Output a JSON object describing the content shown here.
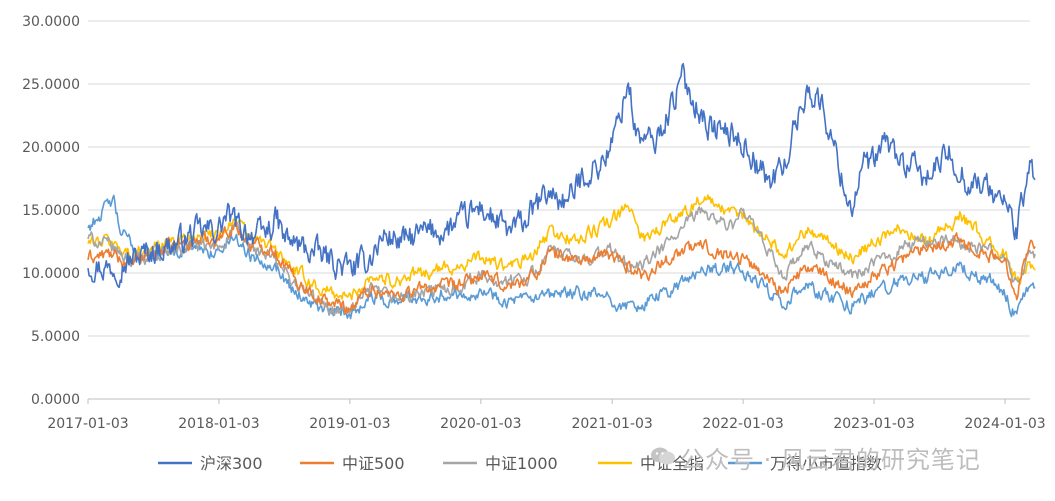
{
  "chart_data": {
    "type": "line",
    "title": "",
    "xlabel": "",
    "ylabel": "",
    "ylim": [
      0,
      30
    ],
    "y_ticks": [
      "0.0000",
      "5.0000",
      "10.0000",
      "15.0000",
      "20.0000",
      "25.0000",
      "30.0000"
    ],
    "x_ticks": [
      "2017-01-03",
      "2018-01-03",
      "2019-01-03",
      "2020-01-03",
      "2021-01-03",
      "2022-01-03",
      "2023-01-03",
      "2024-01-03"
    ],
    "x_range": [
      "2017-01-03",
      "2024-03-29"
    ],
    "grid": "horizontal",
    "legend_position": "bottom",
    "series": [
      {
        "name": "沪深300",
        "color": "#4472C4",
        "points": [
          [
            "2017-01-03",
            10.8
          ],
          [
            "2017-03-01",
            10.4
          ],
          [
            "2017-05-01",
            11.0
          ],
          [
            "2017-07-01",
            11.8
          ],
          [
            "2017-09-01",
            12.3
          ],
          [
            "2017-11-01",
            13.2
          ],
          [
            "2018-01-03",
            13.5
          ],
          [
            "2018-01-25",
            14.6
          ],
          [
            "2018-03-01",
            13.6
          ],
          [
            "2018-05-01",
            12.9
          ],
          [
            "2018-06-15",
            14.2
          ],
          [
            "2018-07-01",
            12.8
          ],
          [
            "2018-09-01",
            11.9
          ],
          [
            "2018-11-01",
            11.2
          ],
          [
            "2018-12-15",
            10.5
          ],
          [
            "2019-01-03",
            10.3
          ],
          [
            "2019-02-15",
            10.8
          ],
          [
            "2019-04-10",
            13.0
          ],
          [
            "2019-06-01",
            12.5
          ],
          [
            "2019-08-01",
            13.2
          ],
          [
            "2019-10-01",
            13.4
          ],
          [
            "2019-12-01",
            14.5
          ],
          [
            "2020-01-03",
            15.2
          ],
          [
            "2020-03-20",
            13.2
          ],
          [
            "2020-05-01",
            14.0
          ],
          [
            "2020-07-10",
            16.4
          ],
          [
            "2020-09-01",
            15.6
          ],
          [
            "2020-10-15",
            17.8
          ],
          [
            "2020-12-01",
            18.6
          ],
          [
            "2021-01-03",
            20.2
          ],
          [
            "2021-02-18",
            25.3
          ],
          [
            "2021-03-10",
            21.0
          ],
          [
            "2021-05-01",
            20.2
          ],
          [
            "2021-07-20",
            25.5
          ],
          [
            "2021-08-10",
            24.2
          ],
          [
            "2021-10-01",
            21.6
          ],
          [
            "2021-12-01",
            21.0
          ],
          [
            "2022-01-03",
            20.4
          ],
          [
            "2022-03-15",
            17.2
          ],
          [
            "2022-04-27",
            18.5
          ],
          [
            "2022-06-01",
            22.0
          ],
          [
            "2022-07-05",
            24.8
          ],
          [
            "2022-08-15",
            23.0
          ],
          [
            "2022-10-31",
            15.0
          ],
          [
            "2022-12-01",
            18.5
          ],
          [
            "2023-01-03",
            18.6
          ],
          [
            "2023-02-01",
            20.4
          ],
          [
            "2023-04-01",
            18.5
          ],
          [
            "2023-06-01",
            17.6
          ],
          [
            "2023-08-01",
            19.5
          ],
          [
            "2023-09-15",
            17.4
          ],
          [
            "2023-11-01",
            17.0
          ],
          [
            "2024-01-03",
            15.6
          ],
          [
            "2024-02-05",
            13.4
          ],
          [
            "2024-02-29",
            16.5
          ],
          [
            "2024-03-15",
            18.8
          ],
          [
            "2024-03-29",
            17.2
          ]
        ]
      },
      {
        "name": "中证500",
        "color": "#ED7D31",
        "points": [
          [
            "2017-01-03",
            11.2
          ],
          [
            "2017-03-01",
            11.5
          ],
          [
            "2017-05-01",
            10.6
          ],
          [
            "2017-07-01",
            11.6
          ],
          [
            "2017-09-01",
            12.2
          ],
          [
            "2017-11-01",
            12.6
          ],
          [
            "2018-01-03",
            12.8
          ],
          [
            "2018-02-15",
            13.8
          ],
          [
            "2018-04-01",
            12.2
          ],
          [
            "2018-06-01",
            12.0
          ],
          [
            "2018-08-01",
            9.6
          ],
          [
            "2018-10-20",
            7.8
          ],
          [
            "2018-12-15",
            7.4
          ],
          [
            "2019-01-03",
            7.2
          ],
          [
            "2019-03-01",
            8.8
          ],
          [
            "2019-05-01",
            8.2
          ],
          [
            "2019-08-01",
            8.8
          ],
          [
            "2019-11-01",
            9.0
          ],
          [
            "2020-01-03",
            9.8
          ],
          [
            "2020-03-20",
            8.9
          ],
          [
            "2020-06-01",
            9.8
          ],
          [
            "2020-07-10",
            11.6
          ],
          [
            "2020-10-01",
            11.0
          ],
          [
            "2021-01-03",
            11.4
          ],
          [
            "2021-02-20",
            10.5
          ],
          [
            "2021-04-01",
            9.8
          ],
          [
            "2021-07-01",
            11.6
          ],
          [
            "2021-09-10",
            12.2
          ],
          [
            "2021-12-01",
            11.4
          ],
          [
            "2022-01-03",
            11.2
          ],
          [
            "2022-04-27",
            8.6
          ],
          [
            "2022-07-01",
            10.5
          ],
          [
            "2022-10-31",
            8.6
          ],
          [
            "2023-01-03",
            9.8
          ],
          [
            "2023-03-15",
            11.0
          ],
          [
            "2023-06-01",
            12.2
          ],
          [
            "2023-09-01",
            12.6
          ],
          [
            "2023-11-15",
            11.4
          ],
          [
            "2024-01-03",
            10.8
          ],
          [
            "2024-02-05",
            8.6
          ],
          [
            "2024-03-10",
            12.4
          ],
          [
            "2024-03-29",
            11.8
          ]
        ]
      },
      {
        "name": "中证1000",
        "color": "#A5A5A5",
        "points": [
          [
            "2017-01-03",
            12.8
          ],
          [
            "2017-03-01",
            12.2
          ],
          [
            "2017-05-01",
            11.0
          ],
          [
            "2017-07-01",
            11.4
          ],
          [
            "2017-09-01",
            11.8
          ],
          [
            "2017-11-01",
            12.1
          ],
          [
            "2018-01-03",
            12.0
          ],
          [
            "2018-02-15",
            13.6
          ],
          [
            "2018-04-01",
            12.0
          ],
          [
            "2018-06-01",
            11.2
          ],
          [
            "2018-08-01",
            9.2
          ],
          [
            "2018-10-20",
            7.4
          ],
          [
            "2018-12-15",
            7.0
          ],
          [
            "2019-01-03",
            6.9
          ],
          [
            "2019-03-01",
            8.6
          ],
          [
            "2019-05-01",
            8.0
          ],
          [
            "2019-08-01",
            8.4
          ],
          [
            "2019-11-01",
            9.0
          ],
          [
            "2020-01-03",
            9.8
          ],
          [
            "2020-03-20",
            9.2
          ],
          [
            "2020-06-01",
            10.0
          ],
          [
            "2020-07-10",
            11.8
          ],
          [
            "2020-10-01",
            11.0
          ],
          [
            "2021-01-03",
            11.8
          ],
          [
            "2021-02-20",
            10.4
          ],
          [
            "2021-04-01",
            10.6
          ],
          [
            "2021-07-01",
            13.0
          ],
          [
            "2021-09-10",
            15.0
          ],
          [
            "2021-12-01",
            13.6
          ],
          [
            "2022-01-03",
            14.8
          ],
          [
            "2022-04-27",
            9.8
          ],
          [
            "2022-07-01",
            12.0
          ],
          [
            "2022-10-31",
            9.8
          ],
          [
            "2023-01-03",
            10.6
          ],
          [
            "2023-03-15",
            12.0
          ],
          [
            "2023-06-01",
            12.6
          ],
          [
            "2023-09-01",
            12.4
          ],
          [
            "2023-11-15",
            11.8
          ],
          [
            "2024-01-03",
            11.2
          ],
          [
            "2024-02-05",
            8.8
          ],
          [
            "2024-03-10",
            11.8
          ],
          [
            "2024-03-29",
            11.0
          ]
        ]
      },
      {
        "name": "中证全指",
        "color": "#FFC000",
        "points": [
          [
            "2017-01-03",
            12.4
          ],
          [
            "2017-03-01",
            12.6
          ],
          [
            "2017-05-01",
            11.4
          ],
          [
            "2017-07-01",
            12.0
          ],
          [
            "2017-09-01",
            12.6
          ],
          [
            "2017-11-01",
            13.0
          ],
          [
            "2018-01-03",
            13.2
          ],
          [
            "2018-02-15",
            14.2
          ],
          [
            "2018-04-01",
            12.8
          ],
          [
            "2018-06-01",
            12.0
          ],
          [
            "2018-08-01",
            10.2
          ],
          [
            "2018-10-20",
            8.6
          ],
          [
            "2018-12-15",
            8.2
          ],
          [
            "2019-01-03",
            8.0
          ],
          [
            "2019-03-01",
            9.8
          ],
          [
            "2019-05-01",
            9.4
          ],
          [
            "2019-08-01",
            10.0
          ],
          [
            "2019-11-01",
            10.6
          ],
          [
            "2020-01-03",
            11.2
          ],
          [
            "2020-03-20",
            10.4
          ],
          [
            "2020-06-01",
            11.4
          ],
          [
            "2020-07-10",
            13.2
          ],
          [
            "2020-10-01",
            12.6
          ],
          [
            "2021-01-03",
            14.2
          ],
          [
            "2021-02-20",
            15.2
          ],
          [
            "2021-04-01",
            12.8
          ],
          [
            "2021-07-01",
            14.4
          ],
          [
            "2021-09-10",
            16.0
          ],
          [
            "2021-12-01",
            14.6
          ],
          [
            "2022-01-03",
            14.6
          ],
          [
            "2022-04-27",
            11.4
          ],
          [
            "2022-07-01",
            13.6
          ],
          [
            "2022-10-31",
            11.2
          ],
          [
            "2023-01-03",
            12.4
          ],
          [
            "2023-03-15",
            13.6
          ],
          [
            "2023-06-01",
            12.6
          ],
          [
            "2023-09-01",
            14.6
          ],
          [
            "2023-11-15",
            12.4
          ],
          [
            "2024-01-03",
            11.4
          ],
          [
            "2024-02-05",
            9.2
          ],
          [
            "2024-03-10",
            10.8
          ],
          [
            "2024-03-29",
            10.8
          ]
        ]
      },
      {
        "name": "万得小市值指数",
        "color": "#5B9BD5",
        "points": [
          [
            "2017-01-03",
            13.6
          ],
          [
            "2017-03-15",
            15.8
          ],
          [
            "2017-04-01",
            13.4
          ],
          [
            "2017-06-01",
            11.4
          ],
          [
            "2017-08-01",
            11.8
          ],
          [
            "2017-11-01",
            12.0
          ],
          [
            "2018-01-03",
            11.6
          ],
          [
            "2018-02-15",
            13.0
          ],
          [
            "2018-04-01",
            11.4
          ],
          [
            "2018-06-01",
            10.8
          ],
          [
            "2018-08-01",
            8.6
          ],
          [
            "2018-10-20",
            7.0
          ],
          [
            "2018-12-15",
            6.8
          ],
          [
            "2019-01-03",
            6.7
          ],
          [
            "2019-03-01",
            8.2
          ],
          [
            "2019-05-01",
            7.8
          ],
          [
            "2019-08-01",
            8.2
          ],
          [
            "2019-11-01",
            8.4
          ],
          [
            "2020-01-03",
            8.6
          ],
          [
            "2020-03-20",
            7.8
          ],
          [
            "2020-06-01",
            7.8
          ],
          [
            "2020-09-01",
            8.4
          ],
          [
            "2020-12-01",
            8.2
          ],
          [
            "2021-01-03",
            7.8
          ],
          [
            "2021-02-20",
            7.2
          ],
          [
            "2021-04-01",
            7.6
          ],
          [
            "2021-06-01",
            8.4
          ],
          [
            "2021-09-10",
            10.2
          ],
          [
            "2021-12-01",
            10.4
          ],
          [
            "2022-01-03",
            10.0
          ],
          [
            "2022-04-27",
            7.8
          ],
          [
            "2022-07-01",
            8.8
          ],
          [
            "2022-10-31",
            7.4
          ],
          [
            "2023-01-03",
            8.4
          ],
          [
            "2023-03-15",
            9.4
          ],
          [
            "2023-06-01",
            9.6
          ],
          [
            "2023-09-01",
            10.4
          ],
          [
            "2023-11-15",
            9.6
          ],
          [
            "2024-01-03",
            8.4
          ],
          [
            "2024-02-05",
            6.4
          ],
          [
            "2024-03-10",
            9.0
          ],
          [
            "2024-03-29",
            9.2
          ]
        ]
      }
    ]
  },
  "watermark": {
    "text": "公众号 · 风云君的研究笔记",
    "icon": "wechat-icon"
  }
}
